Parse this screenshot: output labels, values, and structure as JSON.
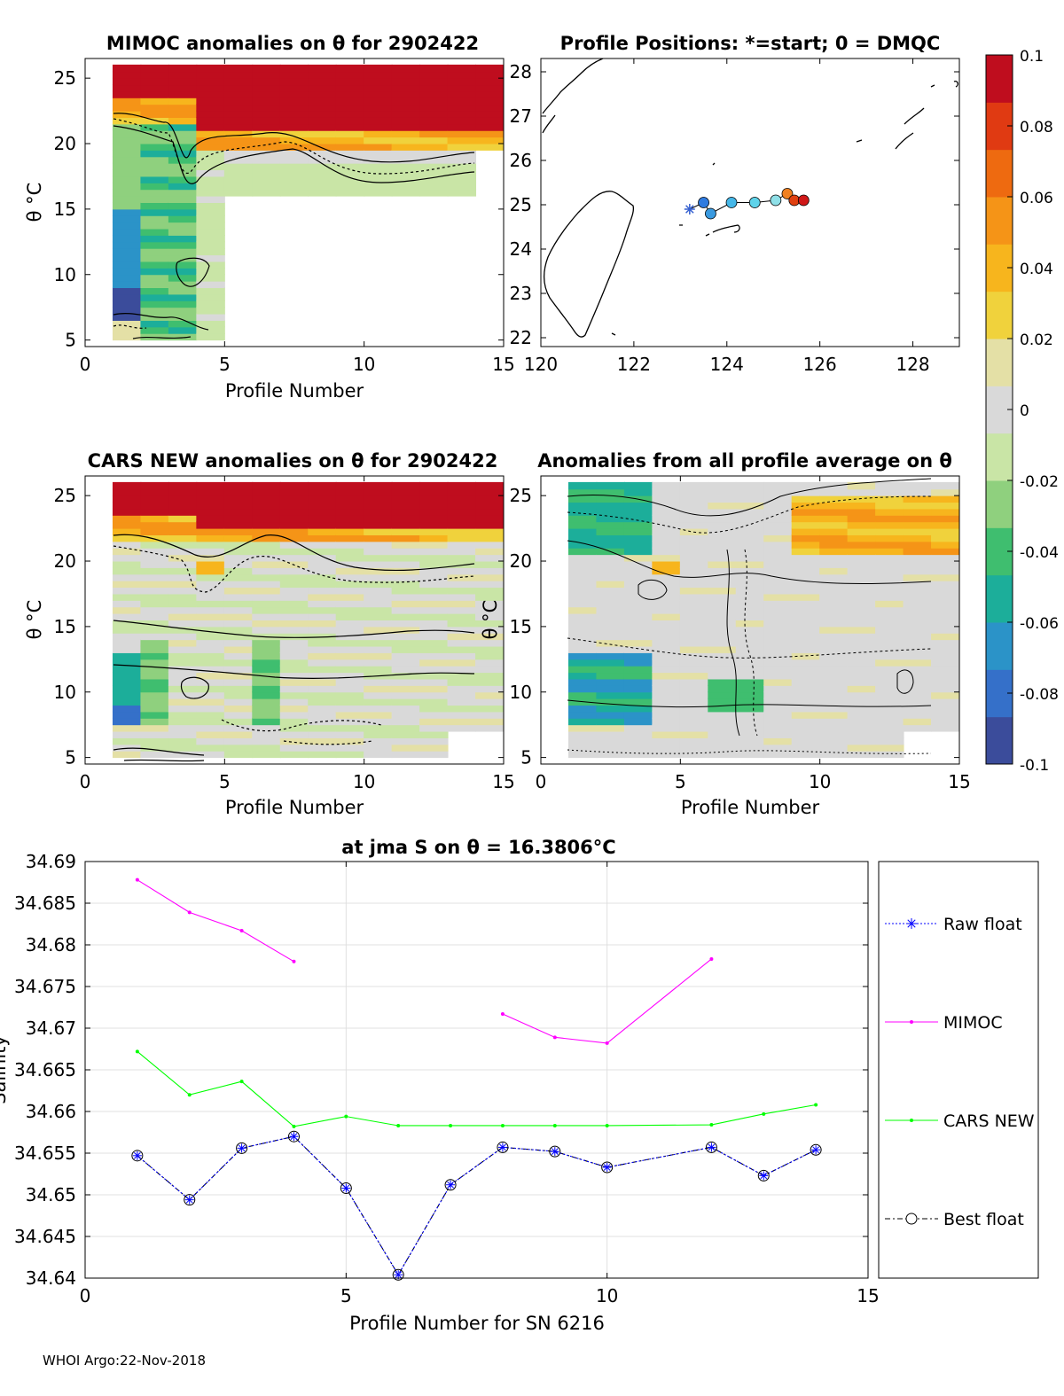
{
  "footer": "WHOI Argo:22-Nov-2018",
  "colorbar": {
    "ticks": [
      "0.1",
      "0.08",
      "0.06",
      "0.04",
      "0.02",
      "0",
      "-0.02",
      "-0.04",
      "-0.06",
      "-0.08",
      "-0.1"
    ],
    "colors": [
      "#3b4c9b",
      "#3570c9",
      "#2b93c8",
      "#1cae9a",
      "#3fbe6f",
      "#8fd07e",
      "#c9e5a6",
      "#d9d9d9",
      "#e4e0a6",
      "#f0d23c",
      "#f7b51d",
      "#f59417",
      "#ee6a10",
      "#e03a12",
      "#bf0d1e"
    ]
  },
  "chart_data": [
    {
      "type": "heatmap",
      "id": "mimoc",
      "title": "MIMOC anomalies on θ  for 2902422",
      "xlabel": "Profile Number",
      "ylabel": "θ °C",
      "xlim": [
        0,
        15
      ],
      "ylim": [
        4.5,
        26.5
      ],
      "xticks": [
        "0",
        "5",
        "10",
        "15"
      ],
      "yticks": [
        "5",
        "10",
        "15",
        "20",
        "25"
      ],
      "profiles_with_full_depth": [
        1,
        2,
        3,
        4
      ],
      "profiles_upper_only": [
        5,
        6,
        7,
        8,
        9,
        10,
        11,
        12,
        13
      ],
      "surface_anomaly": 0.1,
      "deep_anomaly_min": -0.09
    },
    {
      "type": "scatter",
      "id": "positions",
      "title": "Profile Positions: *=start; 0 = DMQC",
      "xlim": [
        120,
        129
      ],
      "ylim": [
        21.8,
        28.3
      ],
      "xticks": [
        "120",
        "122",
        "124",
        "126",
        "128"
      ],
      "yticks": [
        "22",
        "23",
        "24",
        "25",
        "26",
        "27",
        "28"
      ],
      "lon": [
        123.2,
        123.5,
        123.65,
        124.1,
        124.6,
        125.05,
        125.3,
        125.45,
        125.65
      ],
      "lat": [
        24.9,
        25.05,
        24.8,
        25.05,
        25.05,
        25.1,
        25.25,
        25.1,
        25.1
      ],
      "marker_colors": [
        "#3560d0",
        "#2f7be0",
        "#3a9ae0",
        "#45b7e8",
        "#5ed3ea",
        "#8fe0e8",
        "#f08020",
        "#e04010",
        "#d01818"
      ]
    },
    {
      "type": "heatmap",
      "id": "cars",
      "title": "CARS NEW anomalies on θ for 2902422",
      "xlabel": "Profile Number",
      "ylabel": "θ °C",
      "xlim": [
        0,
        15
      ],
      "ylim": [
        4.5,
        26.5
      ],
      "xticks": [
        "0",
        "5",
        "10",
        "15"
      ],
      "yticks": [
        "5",
        "10",
        "15",
        "20",
        "25"
      ],
      "surface_anomaly": 0.1,
      "deep_anomaly_min": -0.08
    },
    {
      "type": "heatmap",
      "id": "allavg",
      "title": "Anomalies from all profile average on θ",
      "xlabel": "Profile Number",
      "ylabel": "θ °C",
      "xlim": [
        0,
        15
      ],
      "ylim": [
        4.5,
        26.5
      ],
      "xticks": [
        "0",
        "5",
        "10",
        "15"
      ],
      "yticks": [
        "5",
        "10",
        "15",
        "20",
        "25"
      ],
      "warm_anomaly_profiles": [
        9,
        10,
        11,
        12,
        13,
        14
      ],
      "cold_anomaly_profiles": [
        1,
        2,
        3,
        4
      ]
    },
    {
      "type": "line",
      "id": "salinity",
      "title": "at jma S on θ = 16.3806°C",
      "xlabel": "Profile Number for SN 6216",
      "ylabel": "Salinity",
      "xlim": [
        0,
        15
      ],
      "ylim": [
        34.64,
        34.69
      ],
      "xticks": [
        "0",
        "5",
        "10",
        "15"
      ],
      "yticks": [
        "34.64",
        "34.645",
        "34.65",
        "34.655",
        "34.66",
        "34.665",
        "34.67",
        "34.675",
        "34.68",
        "34.685",
        "34.69"
      ],
      "grid": true,
      "legend_position": "right",
      "series": [
        {
          "name": "Raw float",
          "color": "#0000ff",
          "x": [
            1,
            2,
            3,
            4,
            5,
            6,
            7,
            8,
            9,
            10,
            12,
            13,
            14
          ],
          "values": [
            34.6547,
            34.6494,
            34.6556,
            34.657,
            34.6508,
            34.6404,
            34.6512,
            34.6557,
            34.6552,
            34.6533,
            34.6557,
            34.6523,
            34.6554
          ]
        },
        {
          "name": "MIMOC",
          "color": "#ff00ff",
          "segments": [
            {
              "x": [
                1,
                2,
                3,
                4
              ],
              "values": [
                34.6878,
                34.6839,
                34.6817,
                34.678
              ]
            },
            {
              "x": [
                8,
                9,
                10,
                12
              ],
              "values": [
                34.6717,
                34.6689,
                34.6682,
                34.6783
              ]
            }
          ]
        },
        {
          "name": "CARS NEW",
          "color": "#00ff00",
          "x": [
            1,
            2,
            3,
            4,
            5,
            6,
            7,
            8,
            9,
            10,
            12,
            13,
            14
          ],
          "values": [
            34.6672,
            34.662,
            34.6636,
            34.6582,
            34.6594,
            34.6583,
            34.6583,
            34.6583,
            34.6583,
            34.6583,
            34.6584,
            34.6597,
            34.6608
          ]
        },
        {
          "name": "Best float",
          "color": "#000000",
          "x": [
            1,
            2,
            3,
            4,
            5,
            6,
            7,
            8,
            9,
            10,
            12,
            13,
            14
          ],
          "values": [
            34.6547,
            34.6494,
            34.6556,
            34.657,
            34.6508,
            34.6404,
            34.6512,
            34.6557,
            34.6552,
            34.6533,
            34.6557,
            34.6523,
            34.6554
          ]
        }
      ]
    }
  ]
}
